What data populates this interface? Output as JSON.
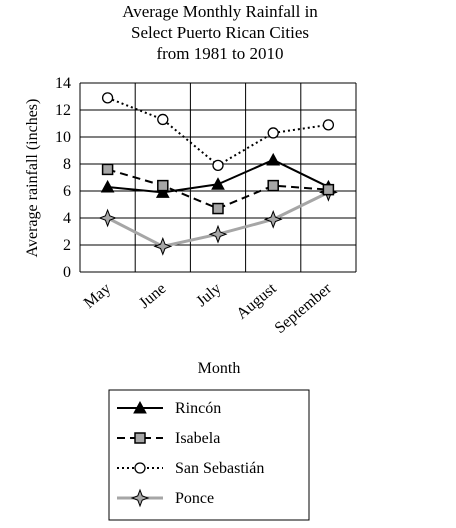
{
  "chart_data": {
    "type": "line",
    "title": [
      "Average Monthly Rainfall in",
      "Select Puerto Rican Cities",
      "from 1981 to 2010"
    ],
    "xlabel": "Month",
    "ylabel": "Average rainfall (inches)",
    "categories": [
      "May",
      "June",
      "July",
      "August",
      "September"
    ],
    "yticks": [
      "0",
      "2",
      "4",
      "6",
      "8",
      "10",
      "12",
      "14"
    ],
    "ylim": [
      0,
      14
    ],
    "grid": true,
    "legend_position": "bottom",
    "series": [
      {
        "name": "Rincón",
        "values": [
          6.3,
          5.9,
          6.5,
          8.3,
          6.3
        ],
        "color": "#000000",
        "dash": "solid",
        "marker": "triangle-filled"
      },
      {
        "name": "Isabela",
        "values": [
          7.6,
          6.4,
          4.7,
          6.4,
          6.1
        ],
        "color": "#000000",
        "dash": "dashed",
        "marker": "square-gray"
      },
      {
        "name": "San Sebastián",
        "values": [
          12.9,
          11.3,
          7.9,
          10.3,
          10.9
        ],
        "color": "#000000",
        "dash": "dotted",
        "marker": "circle-open"
      },
      {
        "name": "Ponce",
        "values": [
          4.0,
          1.9,
          2.8,
          3.9,
          5.9
        ],
        "color": "#a6a6a6",
        "dash": "solid",
        "marker": "star-4"
      }
    ]
  }
}
